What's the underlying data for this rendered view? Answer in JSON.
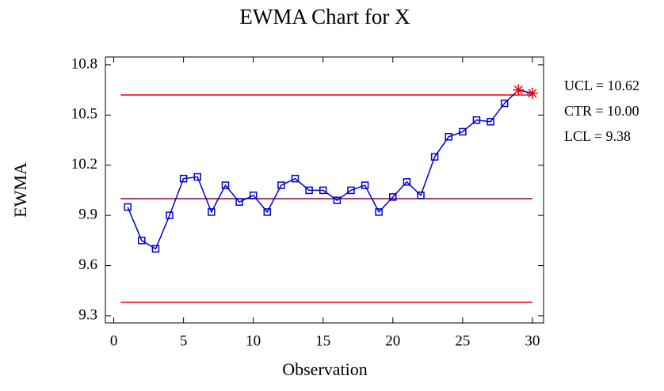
{
  "chart_data": {
    "type": "line",
    "title": "EWMA Chart for X",
    "x_label": "Observation",
    "y_label": "EWMA",
    "x": [
      1,
      2,
      3,
      4,
      5,
      6,
      7,
      8,
      9,
      10,
      11,
      12,
      13,
      14,
      15,
      16,
      17,
      18,
      19,
      20,
      21,
      22,
      23,
      24,
      25,
      26,
      27,
      28,
      29,
      30
    ],
    "series": [
      {
        "name": "EWMA",
        "color": "#0000cc",
        "values": [
          9.95,
          9.75,
          9.7,
          9.9,
          10.12,
          10.13,
          9.92,
          10.08,
          9.98,
          10.02,
          9.92,
          10.08,
          10.12,
          10.05,
          10.05,
          9.99,
          10.05,
          10.08,
          9.92,
          10.01,
          10.1,
          10.02,
          10.25,
          10.37,
          10.4,
          10.47,
          10.46,
          10.57,
          10.65,
          10.63
        ]
      }
    ],
    "limits": [
      {
        "label": "UCL = 10.62",
        "value": 10.62,
        "color": "#ee0000"
      },
      {
        "label": "CTR = 10.00",
        "value": 10.0,
        "color": "#800040"
      },
      {
        "label": "LCL = 9.38",
        "value": 9.38,
        "color": "#ee0000"
      }
    ],
    "out_of_control_color": "#ee0000",
    "xlim": [
      -0.6,
      30.8
    ],
    "xticks": [
      0,
      5,
      10,
      15,
      20,
      25,
      30
    ],
    "ylim": [
      9.257,
      10.847
    ],
    "yticks": [
      9.3,
      9.6,
      9.9,
      10.2,
      10.5,
      10.8
    ]
  }
}
